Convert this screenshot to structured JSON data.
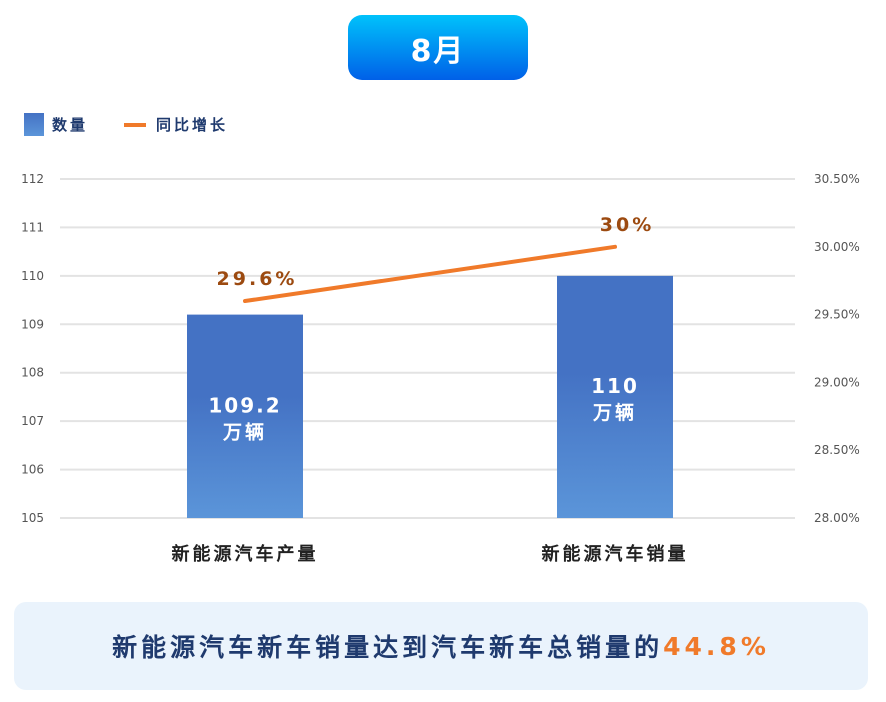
{
  "title": "8月",
  "banner": {
    "text": "新能源汽车新车销量达到汽车新车总销量的",
    "highlight": "44.8%"
  },
  "colors": {
    "bar": "#4472c4",
    "line": "#f07a2a",
    "title_bg": "#0a84f0"
  },
  "chart_data": {
    "type": "bar+line",
    "categories": [
      "新能源汽车产量",
      "新能源汽车销量"
    ],
    "series": [
      {
        "name": "数量",
        "type": "bar",
        "axis": "left",
        "values": [
          109.2,
          110
        ],
        "labels": [
          [
            "109.2",
            "万辆"
          ],
          [
            "110",
            "万辆"
          ]
        ]
      },
      {
        "name": "同比增长",
        "type": "line",
        "axis": "right",
        "values": [
          29.6,
          30.0
        ],
        "labels": [
          "29.6%",
          "30%"
        ]
      }
    ],
    "yleft": {
      "lim": [
        105,
        112
      ],
      "ticks": [
        "105",
        "106",
        "107",
        "108",
        "109",
        "110",
        "111",
        "112"
      ]
    },
    "yright": {
      "lim": [
        28.0,
        30.5
      ],
      "ticks": [
        "28.00%",
        "28.50%",
        "29.00%",
        "29.50%",
        "30.00%",
        "30.50%"
      ]
    },
    "grid": true,
    "legend": "top-left"
  }
}
